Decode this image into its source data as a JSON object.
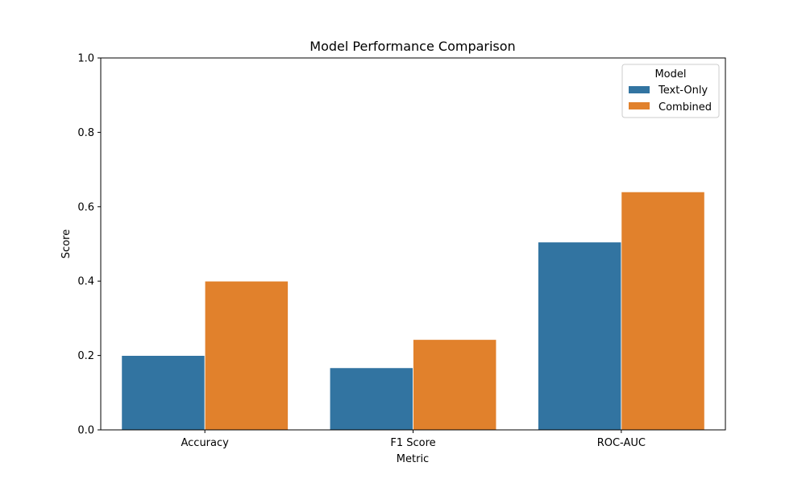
{
  "chart_data": {
    "type": "bar",
    "title": "Model Performance Comparison",
    "xlabel": "Metric",
    "ylabel": "Score",
    "categories": [
      "Accuracy",
      "F1 Score",
      "ROC-AUC"
    ],
    "series": [
      {
        "name": "Text-Only",
        "values": [
          0.2,
          0.167,
          0.505
        ],
        "color": "#3274a1"
      },
      {
        "name": "Combined",
        "values": [
          0.4,
          0.243,
          0.64
        ],
        "color": "#e1812c"
      }
    ],
    "ylim": [
      0,
      1.0
    ],
    "yticks": [
      "0.0",
      "0.2",
      "0.4",
      "0.6",
      "0.8",
      "1.0"
    ],
    "grid": false,
    "legend": {
      "title": "Model",
      "placement": "top-right"
    }
  }
}
